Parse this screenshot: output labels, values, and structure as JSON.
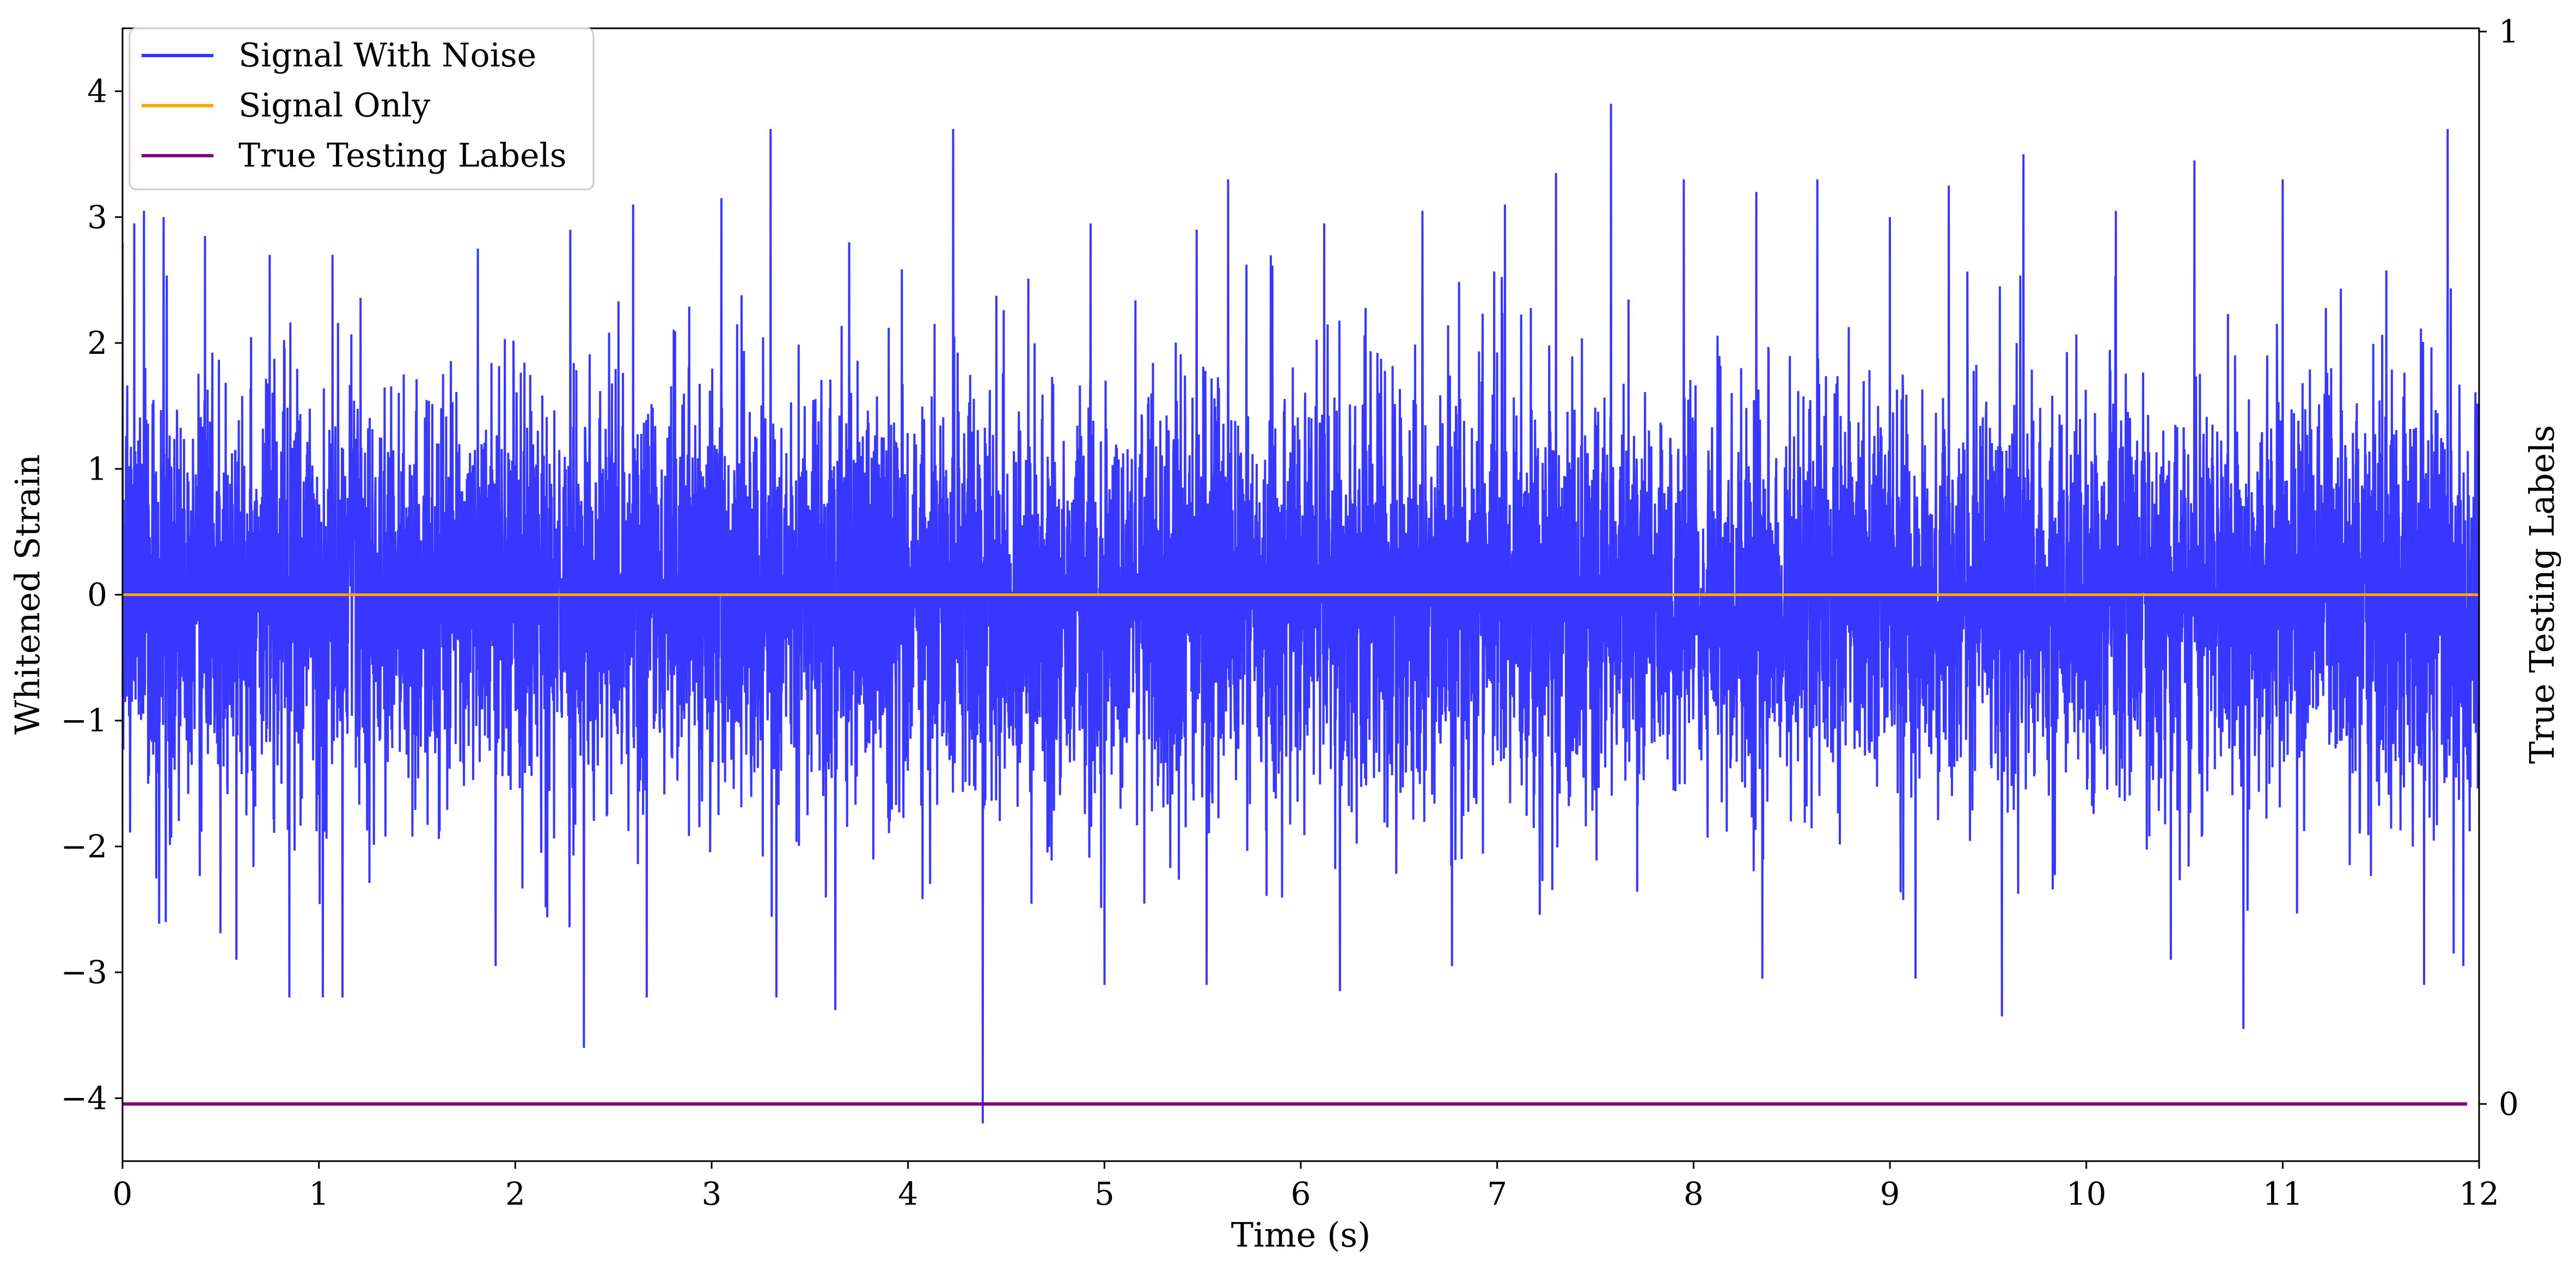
{
  "chart_data": {
    "type": "line",
    "title": "",
    "xlabel": "Time (s)",
    "ylabel": "Whitened Strain",
    "ylabel_right": "True Testing Labels",
    "xlim": [
      0,
      12
    ],
    "ylim": [
      -4.5,
      4.5
    ],
    "ylim_right": [
      0,
      1
    ],
    "x_ticks": [
      0,
      1,
      2,
      3,
      4,
      5,
      6,
      7,
      8,
      9,
      10,
      11,
      12
    ],
    "x_tick_labels": [
      "0",
      "1",
      "2",
      "3",
      "4",
      "5",
      "6",
      "7",
      "8",
      "9",
      "10",
      "11",
      "12"
    ],
    "y_ticks": [
      -4,
      -3,
      -2,
      -1,
      0,
      1,
      2,
      3,
      4
    ],
    "y_tick_labels": [
      "−4",
      "−3",
      "−2",
      "−1",
      "0",
      "1",
      "2",
      "3",
      "4"
    ],
    "y_right_ticks": [
      0,
      1
    ],
    "y_right_tick_labels": [
      "0",
      "1"
    ],
    "grid": false,
    "legend_position": "top-left",
    "series": [
      {
        "name": "Signal With Noise",
        "color": "#3333ff",
        "axis": "left",
        "description_stats": {
          "mean": 0.0,
          "std": 0.8
        },
        "peaks": [
          {
            "x": 0.0,
            "y": 2.8
          },
          {
            "x": 0.06,
            "y": 2.95
          },
          {
            "x": 0.11,
            "y": 3.05
          },
          {
            "x": 0.21,
            "y": 3.0
          },
          {
            "x": 0.42,
            "y": 2.85
          },
          {
            "x": 0.75,
            "y": 2.7
          },
          {
            "x": 1.07,
            "y": 2.7
          },
          {
            "x": 1.81,
            "y": 2.75
          },
          {
            "x": 2.28,
            "y": 2.9
          },
          {
            "x": 2.6,
            "y": 3.1
          },
          {
            "x": 3.05,
            "y": 3.15
          },
          {
            "x": 3.3,
            "y": 3.7
          },
          {
            "x": 3.7,
            "y": 2.8
          },
          {
            "x": 4.23,
            "y": 3.7
          },
          {
            "x": 4.93,
            "y": 2.95
          },
          {
            "x": 5.47,
            "y": 2.9
          },
          {
            "x": 5.63,
            "y": 3.3
          },
          {
            "x": 6.12,
            "y": 2.95
          },
          {
            "x": 6.62,
            "y": 3.05
          },
          {
            "x": 7.04,
            "y": 3.1
          },
          {
            "x": 7.3,
            "y": 3.35
          },
          {
            "x": 7.58,
            "y": 3.9
          },
          {
            "x": 7.95,
            "y": 3.3
          },
          {
            "x": 8.32,
            "y": 3.2
          },
          {
            "x": 8.63,
            "y": 3.3
          },
          {
            "x": 9.0,
            "y": 3.0
          },
          {
            "x": 9.3,
            "y": 3.25
          },
          {
            "x": 9.68,
            "y": 3.5
          },
          {
            "x": 10.15,
            "y": 3.05
          },
          {
            "x": 10.55,
            "y": 3.45
          },
          {
            "x": 11.0,
            "y": 3.3
          },
          {
            "x": 11.72,
            "y": 3.3
          },
          {
            "x": 11.84,
            "y": 3.7
          }
        ],
        "troughs": [
          {
            "x": 0.22,
            "y": -2.6
          },
          {
            "x": 0.58,
            "y": -2.9
          },
          {
            "x": 0.85,
            "y": -3.2
          },
          {
            "x": 1.02,
            "y": -3.2
          },
          {
            "x": 1.12,
            "y": -3.2
          },
          {
            "x": 1.9,
            "y": -2.95
          },
          {
            "x": 2.35,
            "y": -3.6
          },
          {
            "x": 2.67,
            "y": -3.2
          },
          {
            "x": 3.33,
            "y": -3.2
          },
          {
            "x": 3.63,
            "y": -3.3
          },
          {
            "x": 4.38,
            "y": -4.2
          },
          {
            "x": 5.0,
            "y": -3.1
          },
          {
            "x": 5.52,
            "y": -3.1
          },
          {
            "x": 6.2,
            "y": -3.15
          },
          {
            "x": 6.77,
            "y": -2.95
          },
          {
            "x": 8.35,
            "y": -3.05
          },
          {
            "x": 9.13,
            "y": -3.05
          },
          {
            "x": 9.57,
            "y": -3.35
          },
          {
            "x": 10.43,
            "y": -2.9
          },
          {
            "x": 10.8,
            "y": -3.45
          },
          {
            "x": 11.72,
            "y": -3.1
          },
          {
            "x": 11.87,
            "y": -2.85
          },
          {
            "x": 11.92,
            "y": -2.95
          }
        ]
      },
      {
        "name": "Signal Only",
        "color": "#ffa500",
        "axis": "left",
        "x": [
          0,
          12
        ],
        "y": [
          0,
          0
        ]
      },
      {
        "name": "True Testing Labels",
        "color": "#800080",
        "axis": "right",
        "x": [
          0,
          12
        ],
        "y": [
          0,
          0
        ]
      }
    ]
  }
}
